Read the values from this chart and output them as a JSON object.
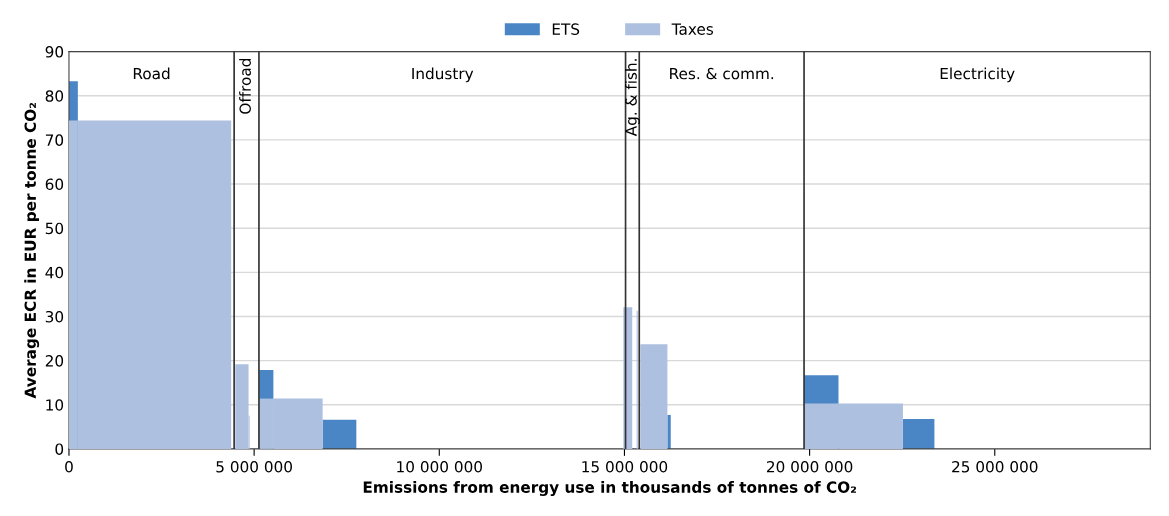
{
  "chart_data": {
    "type": "histogram",
    "xlabel": "Emissions from energy use in thousands of tonnes of CO₂",
    "ylabel": "Average ECR in EUR per tonne CO₂",
    "bins": [
      0,
      240000,
      4380000,
      4490000,
      4850000,
      4880000,
      5140000,
      5520000,
      6850000,
      7760000,
      14970000,
      15210000,
      15330000,
      15360000,
      15430000,
      16160000,
      16250000,
      19850000,
      20780000,
      22520000,
      23370000
    ],
    "series": [
      {
        "name": "ETS",
        "color": "#4a86c5",
        "values": [
          83.3,
          null,
          null,
          null,
          null,
          null,
          17.9,
          null,
          6.6,
          null,
          null,
          null,
          null,
          null,
          null,
          7.7,
          null,
          16.7,
          null,
          6.8
        ]
      },
      {
        "name": "Taxes",
        "color": "#adc0e0",
        "values": [
          74.4,
          74.4,
          null,
          19.2,
          7.5,
          null,
          11.4,
          11.4,
          null,
          null,
          32.1,
          null,
          31.3,
          null,
          23.7,
          null,
          null,
          10.3,
          10.3,
          null
        ]
      }
    ],
    "ref_lines": [
      {
        "axis": "x",
        "value": 4460000,
        "color": "#333333"
      },
      {
        "axis": "x",
        "value": 5130000,
        "color": "#333333"
      },
      {
        "axis": "x",
        "value": 15030000,
        "color": "#333333"
      },
      {
        "axis": "x",
        "value": 15400000,
        "color": "#333333"
      },
      {
        "axis": "x",
        "value": 19850000,
        "color": "#333333"
      }
    ],
    "annotations": [
      "Road",
      "Offroad",
      "Industry",
      "Ag. & fish.",
      "Res. & comm.",
      "Electricity"
    ],
    "xlim": [
      0,
      29200000
    ],
    "xticks": [
      0,
      {
        "value": 5000000,
        "label": "5 000 000"
      },
      {
        "value": 10000000,
        "label": "10 000 000"
      },
      {
        "value": 15000000,
        "label": "15 000 000"
      },
      {
        "value": 20000000,
        "label": "20 000 000"
      },
      {
        "value": 25000000,
        "label": "25 000 000"
      }
    ],
    "ylim": [
      0,
      90
    ],
    "yticks": [
      0,
      10,
      20,
      30,
      40,
      50,
      60,
      70,
      80,
      90
    ],
    "grid": "y",
    "legend": "top"
  }
}
